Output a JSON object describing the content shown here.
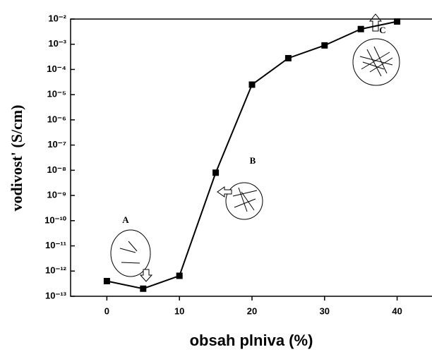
{
  "chart_data": {
    "type": "line",
    "x_label": "obsah plniva (%)",
    "y_label": "vodivost' (S/cm)",
    "x": [
      0,
      5,
      10,
      15,
      20,
      25,
      30,
      35,
      40
    ],
    "values": [
      4e-13,
      2e-13,
      6.5e-13,
      8e-09,
      2.5e-05,
      0.00028,
      0.0009,
      0.004,
      0.008
    ],
    "color": "#000000",
    "marker": "square",
    "xlim": [
      -5,
      45
    ],
    "xticks": [
      0,
      10,
      20,
      30,
      40
    ],
    "ylim": [
      1e-13,
      0.01
    ],
    "yscale": "log",
    "yticks": [
      {
        "value": 1e-13,
        "label": "10⁻¹³"
      },
      {
        "value": 1e-12,
        "label": "10⁻¹²"
      },
      {
        "value": 1e-11,
        "label": "10⁻¹¹"
      },
      {
        "value": 1e-10,
        "label": "10⁻¹⁰"
      },
      {
        "value": 1e-09,
        "label": "10⁻⁹"
      },
      {
        "value": 1e-08,
        "label": "10⁻⁸"
      },
      {
        "value": 1e-07,
        "label": "10⁻⁷"
      },
      {
        "value": 1e-06,
        "label": "10⁻⁶"
      },
      {
        "value": 1e-05,
        "label": "10⁻⁵"
      },
      {
        "value": 0.0001,
        "label": "10⁻⁴"
      },
      {
        "value": 0.001,
        "label": "10⁻³"
      },
      {
        "value": 0.01,
        "label": "10⁻²"
      }
    ],
    "annotations": [
      "A",
      "B",
      "C"
    ]
  }
}
